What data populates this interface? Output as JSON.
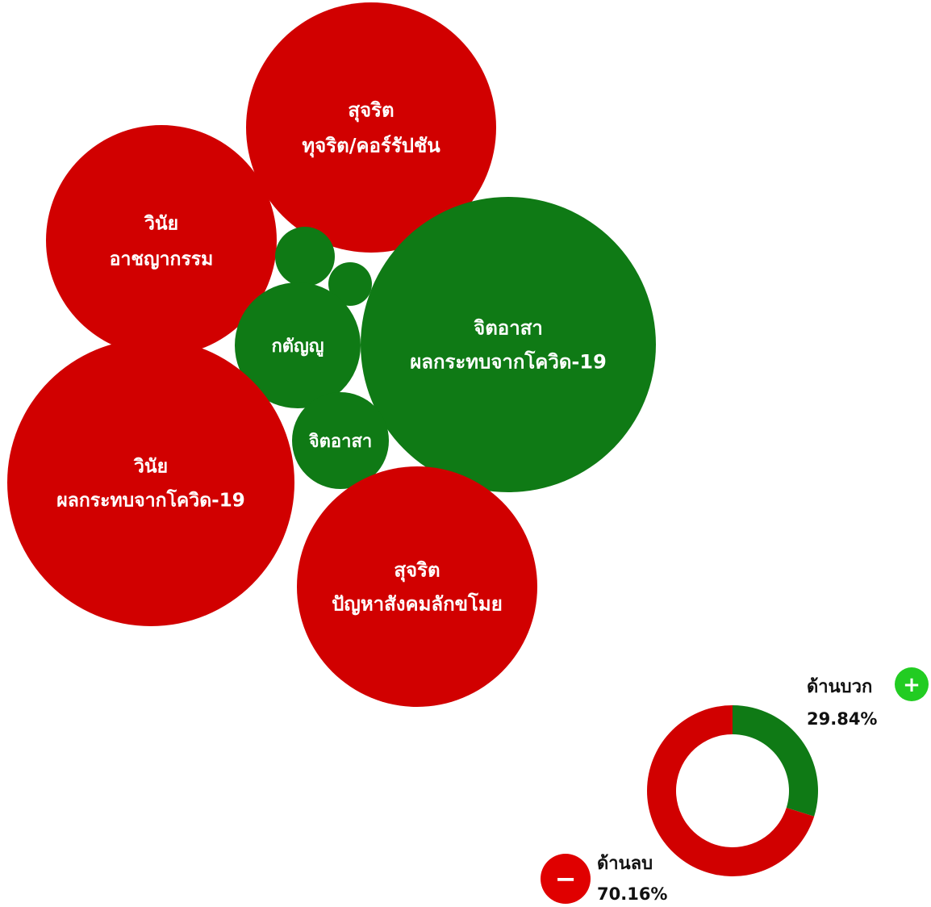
{
  "chart_data": [
    {
      "type": "bubble",
      "bubbles": [
        {
          "id": "b1",
          "lines": [
            "สุจริต",
            "ทุจริต/คอร์รัปชัน"
          ],
          "sentiment": "negative"
        },
        {
          "id": "b2",
          "lines": [
            "วินัย",
            "อาชญากรรม"
          ],
          "sentiment": "negative"
        },
        {
          "id": "b3",
          "lines": [],
          "sentiment": "positive"
        },
        {
          "id": "b4",
          "lines": [],
          "sentiment": "positive"
        },
        {
          "id": "b5",
          "lines": [
            "กตัญญู"
          ],
          "sentiment": "positive"
        },
        {
          "id": "b6",
          "lines": [
            "จิตอาสา",
            "ผลกระทบจากโควิด-19"
          ],
          "sentiment": "positive"
        },
        {
          "id": "b7",
          "lines": [
            "จิตอาสา"
          ],
          "sentiment": "positive"
        },
        {
          "id": "b8",
          "lines": [
            "วินัย",
            "ผลกระทบจากโควิด-19"
          ],
          "sentiment": "negative"
        },
        {
          "id": "b9",
          "lines": [
            "สุจริต",
            "ปัญหาสังคมลักขโมย"
          ],
          "sentiment": "negative"
        }
      ]
    },
    {
      "type": "pie",
      "donut": true,
      "slices": [
        {
          "key": "positive",
          "label": "ด้านบวก",
          "percent_text": "29.84%",
          "value": 29.84,
          "sign": "+"
        },
        {
          "key": "negative",
          "label": "ด้านลบ",
          "percent_text": "70.16%",
          "value": 70.16,
          "sign": "−"
        }
      ]
    }
  ],
  "colors": {
    "negative": "#d10000",
    "positive": "#0f7a15",
    "positive_badge": "#22cc22",
    "negative_badge": "#e00000"
  }
}
